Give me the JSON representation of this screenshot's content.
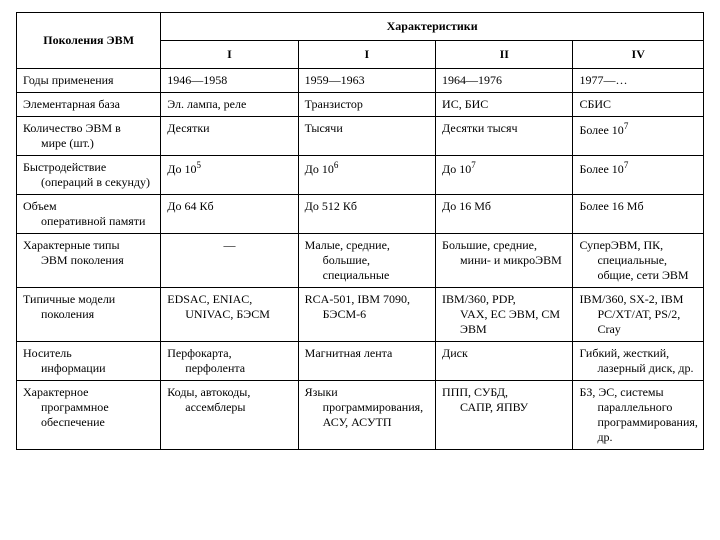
{
  "table": {
    "corner": "Поколения ЭВМ",
    "header_span": "Характеристики",
    "gens": [
      "I",
      "I",
      "II",
      "IV"
    ],
    "rows": [
      {
        "label": "Годы применения",
        "cells": [
          "1946—1958",
          "1959—1963",
          "1964—1976",
          "1977—…"
        ]
      },
      {
        "label": "Элементарная база",
        "cells": [
          "Эл. лампа, реле",
          "Транзистор",
          "ИС, БИС",
          "СБИС"
        ]
      },
      {
        "label_main": "Количество ЭВМ в",
        "label_sub": "мире (шт.)",
        "cells": [
          "Десятки",
          "Тысячи",
          "Десятки тысяч",
          "Более 10⁷"
        ]
      },
      {
        "label_main": "Быстродействие",
        "label_sub": "(операций в секунду)",
        "cells": [
          "До 10⁵",
          "До 10⁶",
          "До 10⁷",
          "Более 10⁷"
        ]
      },
      {
        "label_main": "Объем",
        "label_sub": "оперативной памяти",
        "cells": [
          "До 64 Кб",
          "До 512 Кб",
          "До 16 Мб",
          "Более 16 Мб"
        ]
      },
      {
        "label_main": "Характерные типы",
        "label_sub": "ЭВМ поколения",
        "cells_html": [
          "—",
          "Малые, средние,<span class=\"indent\">большие, специальные</span>",
          "Большие, средние,<span class=\"indent\">мини- и микроЭВМ</span>",
          "СуперЭВМ, ПК,<span class=\"indent\">специальные, общие, сети ЭВМ</span>"
        ],
        "first_center": true
      },
      {
        "label_main": "Типичные модели",
        "label_sub": "поколения",
        "cells_html": [
          "EDSAC, ENIAC,<span class=\"indent\">UNIVAC, БЭСМ</span>",
          "RCA-501, IBM 7090,<span class=\"indent\">БЭСМ-6</span>",
          "IBM/360, PDP,<span class=\"indent\">VAX, ЕС ЭВМ, СМ ЭВМ</span>",
          "IBM/360, SX-2, IBM<span class=\"indent\">PC/XT/AT, PS/2, Cray</span>"
        ]
      },
      {
        "label_main": "Носитель",
        "label_sub": "информации",
        "cells_html": [
          "Перфокарта,<span class=\"indent\">перфолента</span>",
          "Магнитная лента",
          "Диск",
          "Гибкий, жесткий,<span class=\"indent\">лазерный диск, др.</span>"
        ]
      },
      {
        "label_main": "Характерное",
        "label_sub": "программное обеспечение",
        "cells_html": [
          "Коды, автокоды,<span class=\"indent\">ассемблеры</span>",
          "Языки<span class=\"indent\">программирования, АСУ, АСУТП</span>",
          "ППП, СУБД,<span class=\"indent\">САПР, ЯПВУ</span>",
          "БЗ, ЭС, системы<span class=\"indent\">параллельного программирования, др.</span>"
        ]
      }
    ]
  },
  "style": {
    "font_family": "Times New Roman",
    "font_size_pt": 9,
    "border_color": "#000000",
    "background_color": "#ffffff",
    "text_color": "#000000",
    "col_widths_pct": [
      21,
      20,
      20,
      20,
      19
    ]
  }
}
